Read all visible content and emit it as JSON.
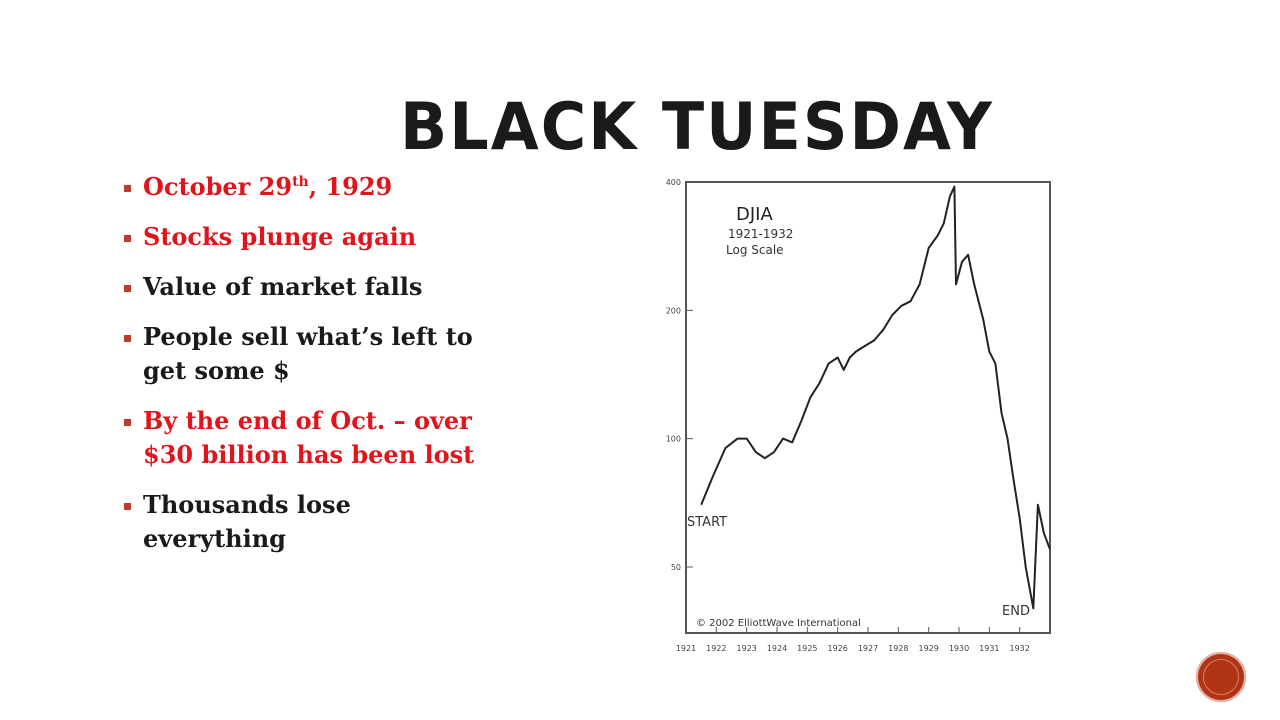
{
  "slide": {
    "title": "Black Tuesday",
    "bullets": [
      {
        "parts": [
          "October 29",
          "th",
          ", 1929"
        ],
        "color": "red"
      },
      {
        "text": "Stocks plunge again",
        "color": "red"
      },
      {
        "text": "Value of market falls",
        "color": "black"
      },
      {
        "text": "People sell what’s left to get some $",
        "color": "black"
      },
      {
        "text": "By the end of Oct. – over $30 billion has been lost",
        "color": "red"
      },
      {
        "text": "Thousands lose everything",
        "color": "black"
      }
    ]
  },
  "chart_data": {
    "type": "line",
    "title": "DJIA",
    "subtitle_lines": [
      "1921-1932",
      "Log Scale"
    ],
    "y_scale": "log",
    "ylim": [
      35,
      400
    ],
    "y_ticks": [
      50,
      100,
      200,
      400
    ],
    "x_ticks": [
      "1921",
      "1922",
      "1923",
      "1924",
      "1925",
      "1926",
      "1927",
      "1928",
      "1929",
      "1930",
      "1931",
      "1932"
    ],
    "annotations": {
      "start": "START",
      "end": "END",
      "copyright": "© 2002 ElliottWave International"
    },
    "grid": false,
    "series": [
      {
        "x": [
          1921.5,
          1921.9,
          1922.3,
          1922.7,
          1923.0,
          1923.3,
          1923.6,
          1923.9,
          1924.2,
          1924.5,
          1924.8,
          1925.1,
          1925.4,
          1925.7,
          1926.0,
          1926.2,
          1926.4,
          1926.6,
          1926.9,
          1927.2,
          1927.5,
          1927.8,
          1928.1,
          1928.4,
          1928.7,
          1929.0,
          1929.3,
          1929.5,
          1929.7,
          1929.85,
          1929.9,
          1930.1,
          1930.3,
          1930.5,
          1930.8,
          1931.0,
          1931.2,
          1931.4,
          1931.6,
          1931.8,
          1932.0,
          1932.2,
          1932.45,
          1932.6,
          1932.8,
          1933.0
        ],
        "y": [
          70,
          82,
          95,
          100,
          100,
          93,
          90,
          93,
          100,
          98,
          110,
          125,
          135,
          150,
          155,
          145,
          155,
          160,
          165,
          170,
          180,
          195,
          205,
          210,
          230,
          280,
          300,
          320,
          370,
          390,
          230,
          260,
          270,
          230,
          190,
          160,
          150,
          115,
          100,
          80,
          65,
          50,
          40,
          70,
          60,
          55
        ]
      }
    ]
  }
}
